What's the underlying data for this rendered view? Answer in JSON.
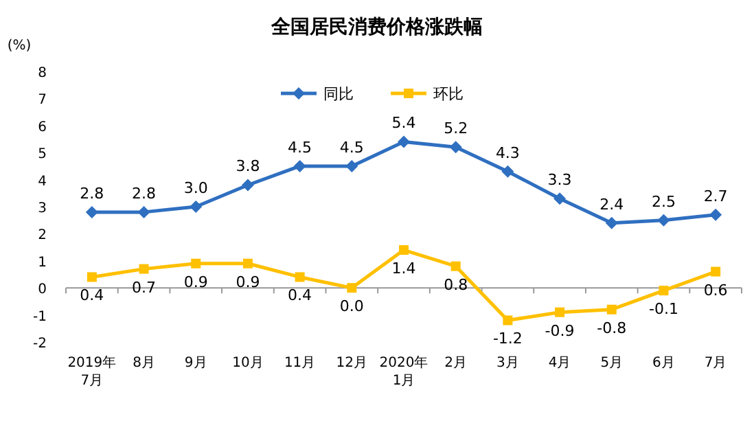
{
  "chart_data": {
    "type": "line",
    "title": "全国居民消费价格涨跌幅",
    "ylabel": "(%)",
    "categories": [
      "2019年\n7月",
      "8月",
      "9月",
      "10月",
      "11月",
      "12月",
      "2020年\n1月",
      "2月",
      "3月",
      "4月",
      "5月",
      "6月",
      "7月"
    ],
    "series": [
      {
        "name": "同比",
        "color": "#2f6fc0",
        "marker": "diamond",
        "values": [
          2.8,
          2.8,
          3.0,
          3.8,
          4.5,
          4.5,
          5.4,
          5.2,
          4.3,
          3.3,
          2.4,
          2.5,
          2.7
        ],
        "value_labels": [
          "2.8",
          "2.8",
          "3.0",
          "3.8",
          "4.5",
          "4.5",
          "5.4",
          "5.2",
          "4.3",
          "3.3",
          "2.4",
          "2.5",
          "2.7"
        ]
      },
      {
        "name": "环比",
        "color": "#ffc000",
        "marker": "square",
        "values": [
          0.4,
          0.7,
          0.9,
          0.9,
          0.4,
          0.0,
          1.4,
          0.8,
          -1.2,
          -0.9,
          -0.8,
          -0.1,
          0.6
        ],
        "value_labels": [
          "0.4",
          "0.7",
          "0.9",
          "0.9",
          "0.4",
          "0.0",
          "1.4",
          "0.8",
          "-1.2",
          "-0.9",
          "-0.8",
          "-0.1",
          "0.6"
        ]
      }
    ],
    "ylim": [
      -2,
      8
    ],
    "yticks": [
      -2,
      -1,
      0,
      1,
      2,
      3,
      4,
      5,
      6,
      7,
      8
    ],
    "legend": "top",
    "line_style": "solid"
  }
}
